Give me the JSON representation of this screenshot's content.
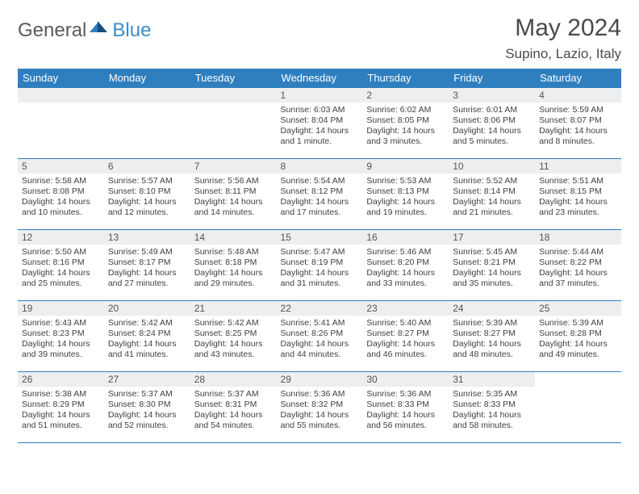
{
  "brand": {
    "word1": "General",
    "word2": "Blue"
  },
  "title": "May 2024",
  "location": "Supino, Lazio, Italy",
  "colors": {
    "header_bg": "#2f7fbf",
    "header_text": "#ffffff",
    "row_border": "#2f7fbf",
    "daynum_bg": "#eceeef",
    "text": "#3f3f3f",
    "brand_gray": "#5a5a5a",
    "brand_blue": "#3b8bc9"
  },
  "weekdays": [
    "Sunday",
    "Monday",
    "Tuesday",
    "Wednesday",
    "Thursday",
    "Friday",
    "Saturday"
  ],
  "first_weekday_index": 3,
  "days": [
    {
      "n": 1,
      "sunrise": "6:03 AM",
      "sunset": "8:04 PM",
      "daylight": "14 hours and 1 minute."
    },
    {
      "n": 2,
      "sunrise": "6:02 AM",
      "sunset": "8:05 PM",
      "daylight": "14 hours and 3 minutes."
    },
    {
      "n": 3,
      "sunrise": "6:01 AM",
      "sunset": "8:06 PM",
      "daylight": "14 hours and 5 minutes."
    },
    {
      "n": 4,
      "sunrise": "5:59 AM",
      "sunset": "8:07 PM",
      "daylight": "14 hours and 8 minutes."
    },
    {
      "n": 5,
      "sunrise": "5:58 AM",
      "sunset": "8:08 PM",
      "daylight": "14 hours and 10 minutes."
    },
    {
      "n": 6,
      "sunrise": "5:57 AM",
      "sunset": "8:10 PM",
      "daylight": "14 hours and 12 minutes."
    },
    {
      "n": 7,
      "sunrise": "5:56 AM",
      "sunset": "8:11 PM",
      "daylight": "14 hours and 14 minutes."
    },
    {
      "n": 8,
      "sunrise": "5:54 AM",
      "sunset": "8:12 PM",
      "daylight": "14 hours and 17 minutes."
    },
    {
      "n": 9,
      "sunrise": "5:53 AM",
      "sunset": "8:13 PM",
      "daylight": "14 hours and 19 minutes."
    },
    {
      "n": 10,
      "sunrise": "5:52 AM",
      "sunset": "8:14 PM",
      "daylight": "14 hours and 21 minutes."
    },
    {
      "n": 11,
      "sunrise": "5:51 AM",
      "sunset": "8:15 PM",
      "daylight": "14 hours and 23 minutes."
    },
    {
      "n": 12,
      "sunrise": "5:50 AM",
      "sunset": "8:16 PM",
      "daylight": "14 hours and 25 minutes."
    },
    {
      "n": 13,
      "sunrise": "5:49 AM",
      "sunset": "8:17 PM",
      "daylight": "14 hours and 27 minutes."
    },
    {
      "n": 14,
      "sunrise": "5:48 AM",
      "sunset": "8:18 PM",
      "daylight": "14 hours and 29 minutes."
    },
    {
      "n": 15,
      "sunrise": "5:47 AM",
      "sunset": "8:19 PM",
      "daylight": "14 hours and 31 minutes."
    },
    {
      "n": 16,
      "sunrise": "5:46 AM",
      "sunset": "8:20 PM",
      "daylight": "14 hours and 33 minutes."
    },
    {
      "n": 17,
      "sunrise": "5:45 AM",
      "sunset": "8:21 PM",
      "daylight": "14 hours and 35 minutes."
    },
    {
      "n": 18,
      "sunrise": "5:44 AM",
      "sunset": "8:22 PM",
      "daylight": "14 hours and 37 minutes."
    },
    {
      "n": 19,
      "sunrise": "5:43 AM",
      "sunset": "8:23 PM",
      "daylight": "14 hours and 39 minutes."
    },
    {
      "n": 20,
      "sunrise": "5:42 AM",
      "sunset": "8:24 PM",
      "daylight": "14 hours and 41 minutes."
    },
    {
      "n": 21,
      "sunrise": "5:42 AM",
      "sunset": "8:25 PM",
      "daylight": "14 hours and 43 minutes."
    },
    {
      "n": 22,
      "sunrise": "5:41 AM",
      "sunset": "8:26 PM",
      "daylight": "14 hours and 44 minutes."
    },
    {
      "n": 23,
      "sunrise": "5:40 AM",
      "sunset": "8:27 PM",
      "daylight": "14 hours and 46 minutes."
    },
    {
      "n": 24,
      "sunrise": "5:39 AM",
      "sunset": "8:27 PM",
      "daylight": "14 hours and 48 minutes."
    },
    {
      "n": 25,
      "sunrise": "5:39 AM",
      "sunset": "8:28 PM",
      "daylight": "14 hours and 49 minutes."
    },
    {
      "n": 26,
      "sunrise": "5:38 AM",
      "sunset": "8:29 PM",
      "daylight": "14 hours and 51 minutes."
    },
    {
      "n": 27,
      "sunrise": "5:37 AM",
      "sunset": "8:30 PM",
      "daylight": "14 hours and 52 minutes."
    },
    {
      "n": 28,
      "sunrise": "5:37 AM",
      "sunset": "8:31 PM",
      "daylight": "14 hours and 54 minutes."
    },
    {
      "n": 29,
      "sunrise": "5:36 AM",
      "sunset": "8:32 PM",
      "daylight": "14 hours and 55 minutes."
    },
    {
      "n": 30,
      "sunrise": "5:36 AM",
      "sunset": "8:33 PM",
      "daylight": "14 hours and 56 minutes."
    },
    {
      "n": 31,
      "sunrise": "5:35 AM",
      "sunset": "8:33 PM",
      "daylight": "14 hours and 58 minutes."
    }
  ],
  "labels": {
    "sunrise": "Sunrise:",
    "sunset": "Sunset:",
    "daylight": "Daylight:"
  }
}
